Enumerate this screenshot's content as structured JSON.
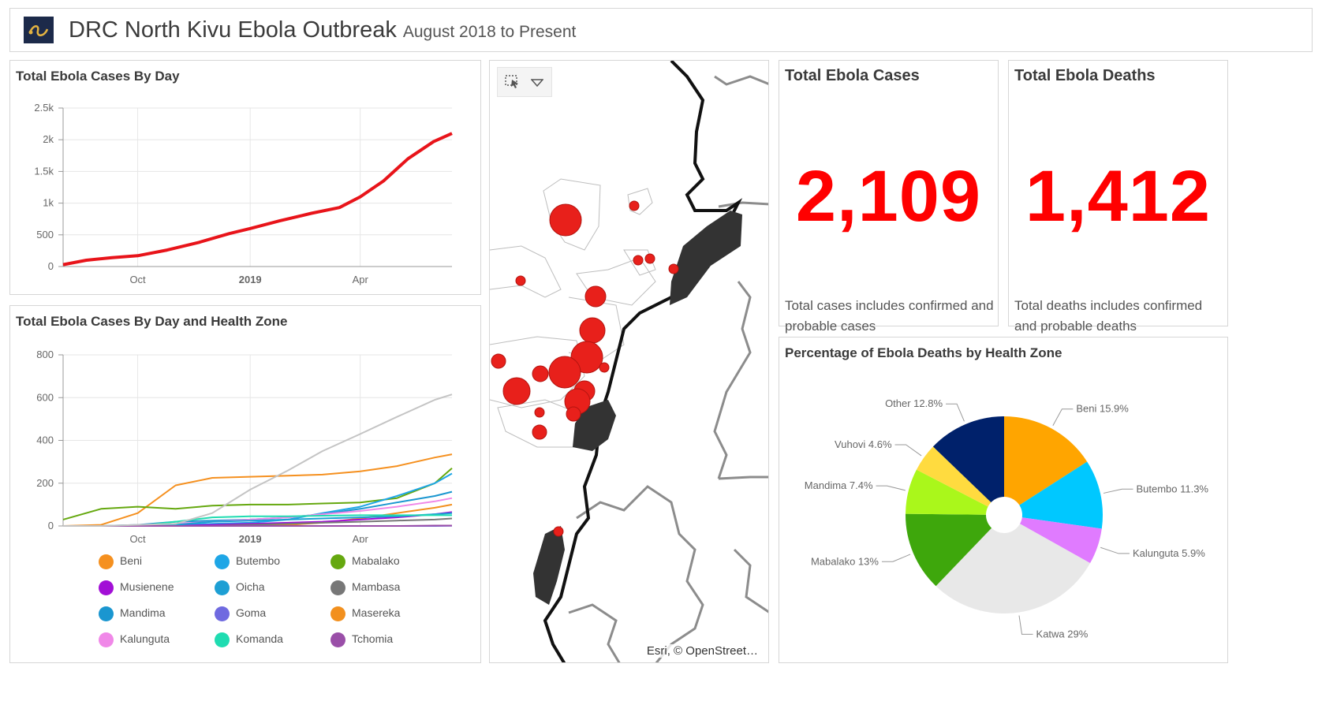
{
  "header": {
    "title": "DRC North Kivu Ebola Outbreak",
    "subtitle": "August 2018 to Present"
  },
  "card_cases_by_day": {
    "title": "Total Ebola Cases By Day",
    "y_ticks": [
      "2.5k",
      "2k",
      "1.5k",
      "1k",
      "500",
      "0"
    ],
    "x_ticks": [
      "Oct",
      "2019",
      "Apr"
    ]
  },
  "card_cases_by_zone": {
    "title": "Total Ebola Cases By Day and Health Zone",
    "y_ticks": [
      "800",
      "600",
      "400",
      "200",
      "0"
    ],
    "x_ticks": [
      "Oct",
      "2019",
      "Apr"
    ],
    "legend": [
      {
        "label": "Beni",
        "color": "#f5901f"
      },
      {
        "label": "Butembo",
        "color": "#1ea6e6"
      },
      {
        "label": "Mabalako",
        "color": "#65a80f"
      },
      {
        "label": "Musienene",
        "color": "#a20fd6"
      },
      {
        "label": "Oicha",
        "color": "#1d9fd4"
      },
      {
        "label": "Mambasa",
        "color": "#777777"
      },
      {
        "label": "Mandima",
        "color": "#1a96d0"
      },
      {
        "label": "Goma",
        "color": "#6f6ae0"
      },
      {
        "label": "Masereka",
        "color": "#f2901e"
      },
      {
        "label": "Kalunguta",
        "color": "#f088e8"
      },
      {
        "label": "Komanda",
        "color": "#1fdcb1"
      },
      {
        "label": "Tchomia",
        "color": "#9a4fa8"
      }
    ]
  },
  "map": {
    "attribution": "Esri, © OpenStreet…",
    "select_icon": "select-arrow-icon",
    "dropdown_icon": "chevron-down-icon"
  },
  "total_cases": {
    "title": "Total Ebola Cases",
    "value": "2,109",
    "note": "Total cases includes confirmed and probable cases"
  },
  "total_deaths": {
    "title": "Total Ebola Deaths",
    "value": "1,412",
    "note": "Total deaths includes confirmed and probable deaths"
  },
  "card_deaths_pie": {
    "title": "Percentage of Ebola Deaths by Health Zone"
  },
  "colors": {
    "accent_red": "#ff0000",
    "line_red": "#e8141a"
  },
  "chart_data": [
    {
      "type": "line",
      "title": "Total Ebola Cases By Day",
      "xlabel": "",
      "ylabel": "",
      "ylim": [
        0,
        2500
      ],
      "x_ticks": [
        "Oct",
        "2019",
        "Apr"
      ],
      "series": [
        {
          "color": "#e8141a",
          "x": [
            "2018-08-01",
            "2018-08-20",
            "2018-09-10",
            "2018-10-01",
            "2018-10-25",
            "2018-11-20",
            "2018-12-15",
            "2019-01-01",
            "2019-01-25",
            "2019-02-20",
            "2019-03-15",
            "2019-04-01",
            "2019-04-20",
            "2019-05-10",
            "2019-05-31",
            "2019-06-15"
          ],
          "values": [
            30,
            100,
            140,
            170,
            260,
            380,
            520,
            600,
            720,
            840,
            930,
            1100,
            1350,
            1700,
            1970,
            2100
          ]
        }
      ]
    },
    {
      "type": "line",
      "title": "Total Ebola Cases By Day and Health Zone",
      "xlabel": "",
      "ylabel": "",
      "ylim": [
        0,
        800
      ],
      "x_ticks": [
        "Oct",
        "2019",
        "Apr"
      ],
      "x": [
        "2018-08-01",
        "2018-09-01",
        "2018-10-01",
        "2018-11-01",
        "2018-12-01",
        "2019-01-01",
        "2019-02-01",
        "2019-03-01",
        "2019-04-01",
        "2019-05-01",
        "2019-06-01",
        "2019-06-15"
      ],
      "series": [
        {
          "name": "Beni",
          "color": "#f5901f",
          "values": [
            0,
            5,
            60,
            190,
            225,
            230,
            235,
            240,
            255,
            280,
            320,
            335
          ]
        },
        {
          "name": "Mabalako",
          "color": "#65a80f",
          "values": [
            30,
            80,
            90,
            80,
            95,
            100,
            100,
            105,
            110,
            130,
            200,
            270
          ]
        },
        {
          "name": "Butembo",
          "color": "#1ea6e6",
          "values": [
            0,
            0,
            0,
            5,
            10,
            15,
            30,
            60,
            90,
            140,
            200,
            245
          ]
        },
        {
          "name": "Mandima",
          "color": "#1a96d0",
          "values": [
            0,
            0,
            5,
            20,
            25,
            30,
            40,
            55,
            80,
            110,
            140,
            160
          ]
        },
        {
          "name": "Kalunguta",
          "color": "#f088e8",
          "values": [
            0,
            0,
            0,
            10,
            20,
            30,
            40,
            55,
            70,
            90,
            115,
            130
          ]
        },
        {
          "name": "Masereka",
          "color": "#f2901e",
          "values": [
            0,
            0,
            0,
            0,
            0,
            0,
            5,
            15,
            35,
            60,
            85,
            100
          ]
        },
        {
          "name": "Musienene",
          "color": "#a20fd6",
          "values": [
            0,
            0,
            0,
            0,
            5,
            10,
            15,
            20,
            30,
            40,
            55,
            65
          ]
        },
        {
          "name": "Oicha",
          "color": "#1d9fd4",
          "values": [
            0,
            0,
            0,
            5,
            20,
            25,
            30,
            35,
            40,
            45,
            55,
            60
          ]
        },
        {
          "name": "Goma",
          "color": "#6f6ae0",
          "values": [
            0,
            0,
            0,
            0,
            0,
            0,
            0,
            0,
            0,
            0,
            0,
            1
          ]
        },
        {
          "name": "Komanda",
          "color": "#1fdcb1",
          "values": [
            0,
            0,
            0,
            20,
            40,
            45,
            45,
            48,
            50,
            50,
            50,
            50
          ]
        },
        {
          "name": "Mambasa",
          "color": "#777777",
          "values": [
            0,
            0,
            0,
            0,
            0,
            5,
            10,
            15,
            20,
            25,
            30,
            35
          ]
        },
        {
          "name": "Tchomia",
          "color": "#9a4fa8",
          "values": [
            0,
            0,
            0,
            0,
            0,
            0,
            0,
            0,
            0,
            0,
            2,
            2
          ]
        },
        {
          "color": "#c4c4c4",
          "values": [
            0,
            0,
            5,
            10,
            60,
            170,
            260,
            350,
            430,
            510,
            590,
            615
          ]
        }
      ]
    },
    {
      "type": "pie",
      "title": "Percentage of Ebola Deaths by Health Zone",
      "slices": [
        {
          "label": "Beni 15.9%",
          "value": 15.9,
          "color": "#ffa500"
        },
        {
          "label": "Butembo 11.3%",
          "value": 11.3,
          "color": "#00c8ff"
        },
        {
          "label": "Kalunguta 5.9%",
          "value": 5.9,
          "color": "#e07bff"
        },
        {
          "label": "Katwa 29%",
          "value": 29,
          "color": "#e8e8e8"
        },
        {
          "label": "Mabalako 13%",
          "value": 13,
          "color": "#3ea70c"
        },
        {
          "label": "Mandima 7.4%",
          "value": 7.4,
          "color": "#aaf71b"
        },
        {
          "label": "Vuhovi 4.6%",
          "value": 4.6,
          "color": "#ffdb3f"
        },
        {
          "label": "Other 12.8%",
          "value": 12.8,
          "color": "#00216b"
        }
      ]
    }
  ]
}
